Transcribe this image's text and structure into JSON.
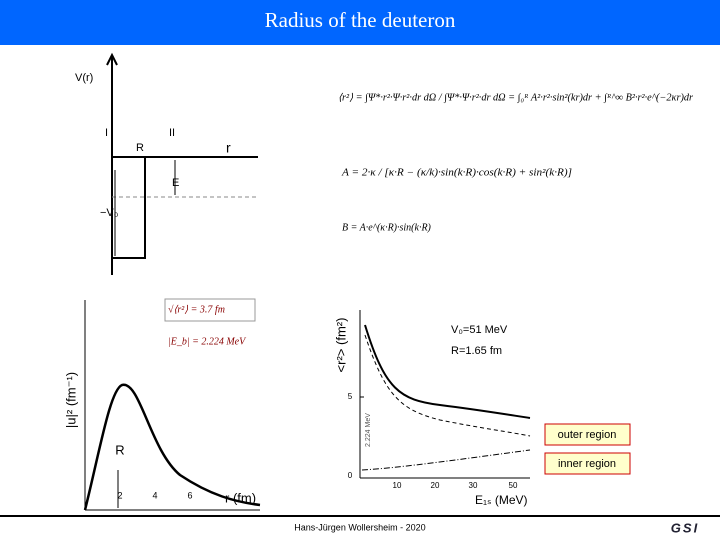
{
  "header": {
    "title": "Radius of the deuteron"
  },
  "potential": {
    "y_label": "V(r)",
    "region_1": "I",
    "region_2": "II",
    "r_label": "R",
    "x_label": "r",
    "energy_label": "E",
    "depth_label": "−V₀"
  },
  "formulas": {
    "r_squared": "⟨r²⟩ = ∫Ψ*·r²·Ψ·r²·dr dΩ / ∫Ψ*·Ψ·r²·dr dΩ = ∫₀ᴿ A²·r²·sin²(kr)dr + ∫ᴿ^∞ B²·r²·e^(−2κr)dr",
    "a_coef": "A = 2·κ / [κ·R − (κ/k)·sin(k·R)·cos(k·R) + sin²(k·R)]",
    "b_coef": "B = A·e^(κ·R)·sin(k·R)"
  },
  "wavefunction": {
    "y_label": "|u|² (fm⁻¹)",
    "rms_radius": "√⟨r²⟩ = 3.7 fm",
    "binding_energy": "|E_b| = 2.224 MeV",
    "r_label": "R",
    "x_label": "r (fm)",
    "x_ticks": [
      "2",
      "4",
      "6"
    ]
  },
  "radius_plot": {
    "y_label": "<r²> (fm²)",
    "x_label": "E₁ₛ (MeV)",
    "params_1": "V₀=51 MeV",
    "params_2": "R=1.65 fm",
    "y_ticks": [
      "5",
      "0"
    ],
    "x_ticks": [
      "10",
      "20",
      "30",
      "50"
    ],
    "marker": "2.224 MeV",
    "legend_outer": "outer region",
    "legend_inner": "inner region"
  },
  "footer": {
    "author": "Hans-Jürgen Wollersheim - 2020",
    "logo": "GSI"
  }
}
